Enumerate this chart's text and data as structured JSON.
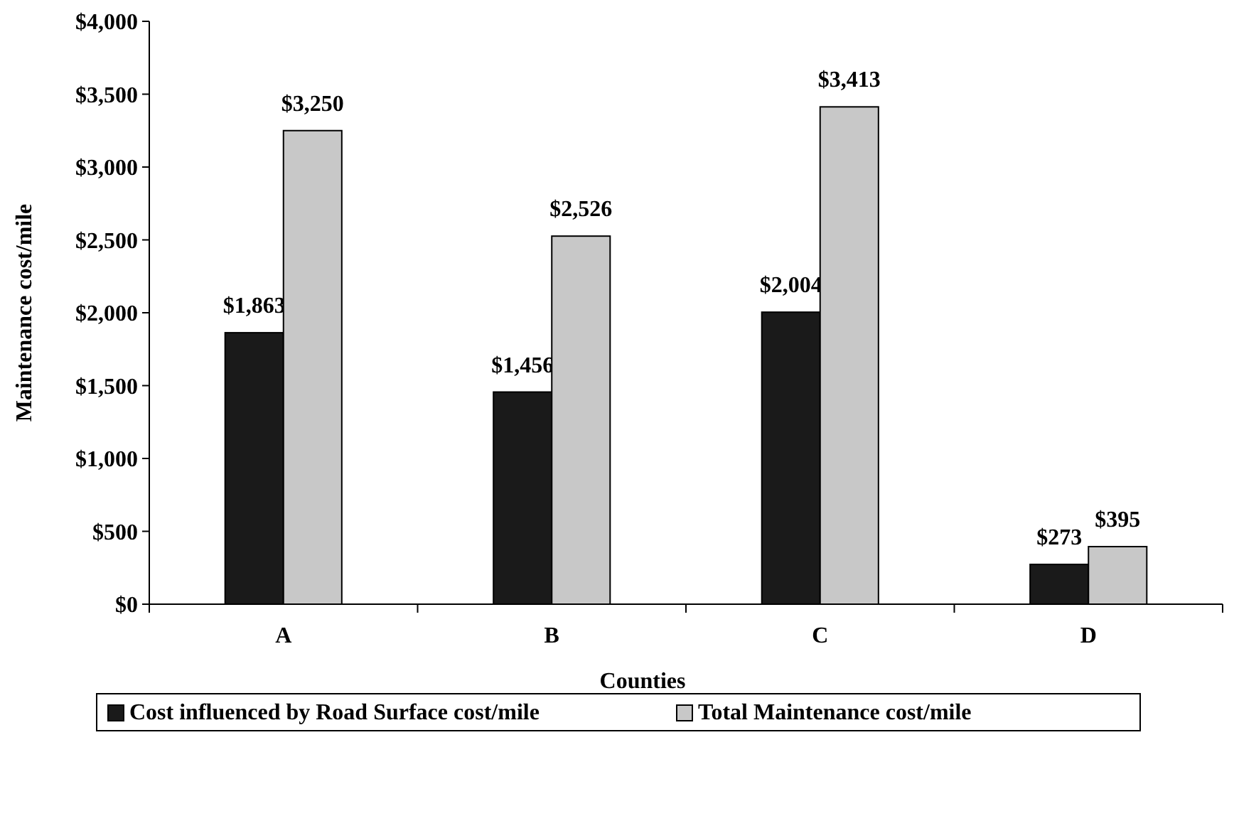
{
  "chart_data": {
    "type": "bar",
    "xlabel": "Counties",
    "ylabel": "Maintenance cost/mile",
    "categories": [
      "A",
      "B",
      "C",
      "D"
    ],
    "series": [
      {
        "name": "Cost influenced by Road Surface cost/mile",
        "color": "#1a1a1a",
        "values": [
          1863,
          1456,
          2004,
          273
        ],
        "value_labels": [
          "$1,863",
          "$1,456",
          "$2,004",
          "$273"
        ]
      },
      {
        "name": "Total Maintenance cost/mile",
        "color": "#c8c8c8",
        "values": [
          3250,
          2526,
          3413,
          395
        ],
        "value_labels": [
          "$3,250",
          "$2,526",
          "$3,413",
          "$395"
        ]
      }
    ],
    "ylim": [
      0,
      4000
    ],
    "yticks": [
      {
        "value": 0,
        "label": "$0"
      },
      {
        "value": 500,
        "label": "$500"
      },
      {
        "value": 1000,
        "label": "$1,000"
      },
      {
        "value": 1500,
        "label": "$1,500"
      },
      {
        "value": 2000,
        "label": "$2,000"
      },
      {
        "value": 2500,
        "label": "$2,500"
      },
      {
        "value": 3000,
        "label": "$3,000"
      },
      {
        "value": 3500,
        "label": "$3,500"
      },
      {
        "value": 4000,
        "label": "$4,000"
      }
    ],
    "grid": false,
    "legend": "bottom"
  }
}
